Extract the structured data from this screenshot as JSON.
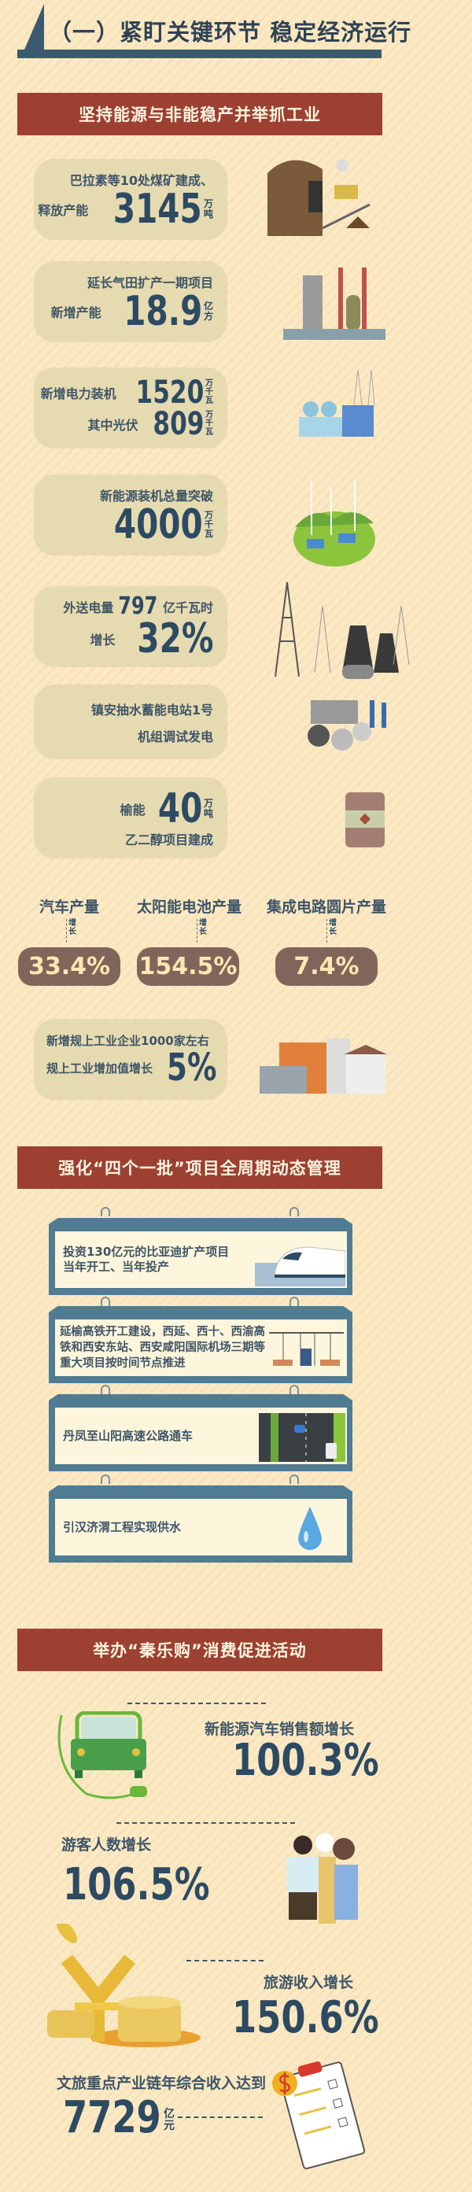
{
  "header": {
    "title": "（一）紧盯关键环节 稳定经济运行"
  },
  "section1": {
    "title": "坚持能源与非能稳产并举抓工业",
    "cards": [
      {
        "line1": "巴拉素等10处煤矿建成、",
        "line2": "释放产能",
        "value": "3145",
        "unit1": "万",
        "unit2": "吨"
      },
      {
        "line1": "延长气田扩产一期项目",
        "line2": "新增产能",
        "value": "18.9",
        "unit1": "亿",
        "unit2": "方"
      },
      {
        "label1": "新增电力装机",
        "value1": "1520",
        "label2": "其中光伏",
        "value2": "809",
        "unit": [
          "万",
          "千",
          "瓦"
        ]
      },
      {
        "line1": "新能源装机总量突破",
        "value": "4000",
        "unit": [
          "万",
          "千",
          "瓦"
        ]
      },
      {
        "pre": "外送电量",
        "value1": "797",
        "post": "亿千瓦时",
        "label2": "增长",
        "value2": "32%"
      },
      {
        "line1": "镇安抽水蓄能电站1号",
        "line2": "机组调试发电"
      },
      {
        "pre": "榆能",
        "value": "40",
        "unit1": "万",
        "unit2": "吨",
        "line2": "乙二醇项目建成"
      }
    ],
    "growth": [
      {
        "label": "汽车产量",
        "tag": "增长",
        "value": "33.4%"
      },
      {
        "label": "太阳能电池产量",
        "tag": "增长",
        "value": "154.5%"
      },
      {
        "label": "集成电路圆片产量",
        "tag": "增长",
        "value": "7.4%"
      }
    ],
    "last_card": {
      "line1": "新增规上工业企业1000家左右",
      "line2": "规上工业增加值增长",
      "value": "5%"
    }
  },
  "section2": {
    "title": "强化“四个一批”项目全周期动态管理",
    "items": [
      {
        "text": "投资130亿元的比亚迪扩产项目当年开工、当年投产",
        "icon": "high-speed-train"
      },
      {
        "text": "延榆高铁开工建设，西延、西十、西渝高铁和西安东站、西安咸阳国际机场三期等重大项目按时间节点推进",
        "icon": "airport-terminal"
      },
      {
        "text": "丹凤至山阳高速公路通车",
        "icon": "highway"
      },
      {
        "text": "引汉济渭工程实现供水",
        "icon": "water-drop"
      }
    ]
  },
  "section3": {
    "title": "举办“秦乐购”消费促进活动",
    "stats": [
      {
        "label": "新能源汽车销售额增长",
        "value": "100.3%"
      },
      {
        "label": "游客人数增长",
        "value": "106.5%"
      },
      {
        "label": "旅游收入增长",
        "value": "150.6%"
      },
      {
        "label": "文旅重点产业链年综合收入达到",
        "value": "7729",
        "unit1": "亿",
        "unit2": "元"
      }
    ]
  },
  "colors": {
    "background": "#fbe9c3",
    "banner": "#9c4032",
    "number": "#2d4a63",
    "card": "#e6dab0",
    "pill": "#82655a",
    "frame": "#4f7b93"
  }
}
